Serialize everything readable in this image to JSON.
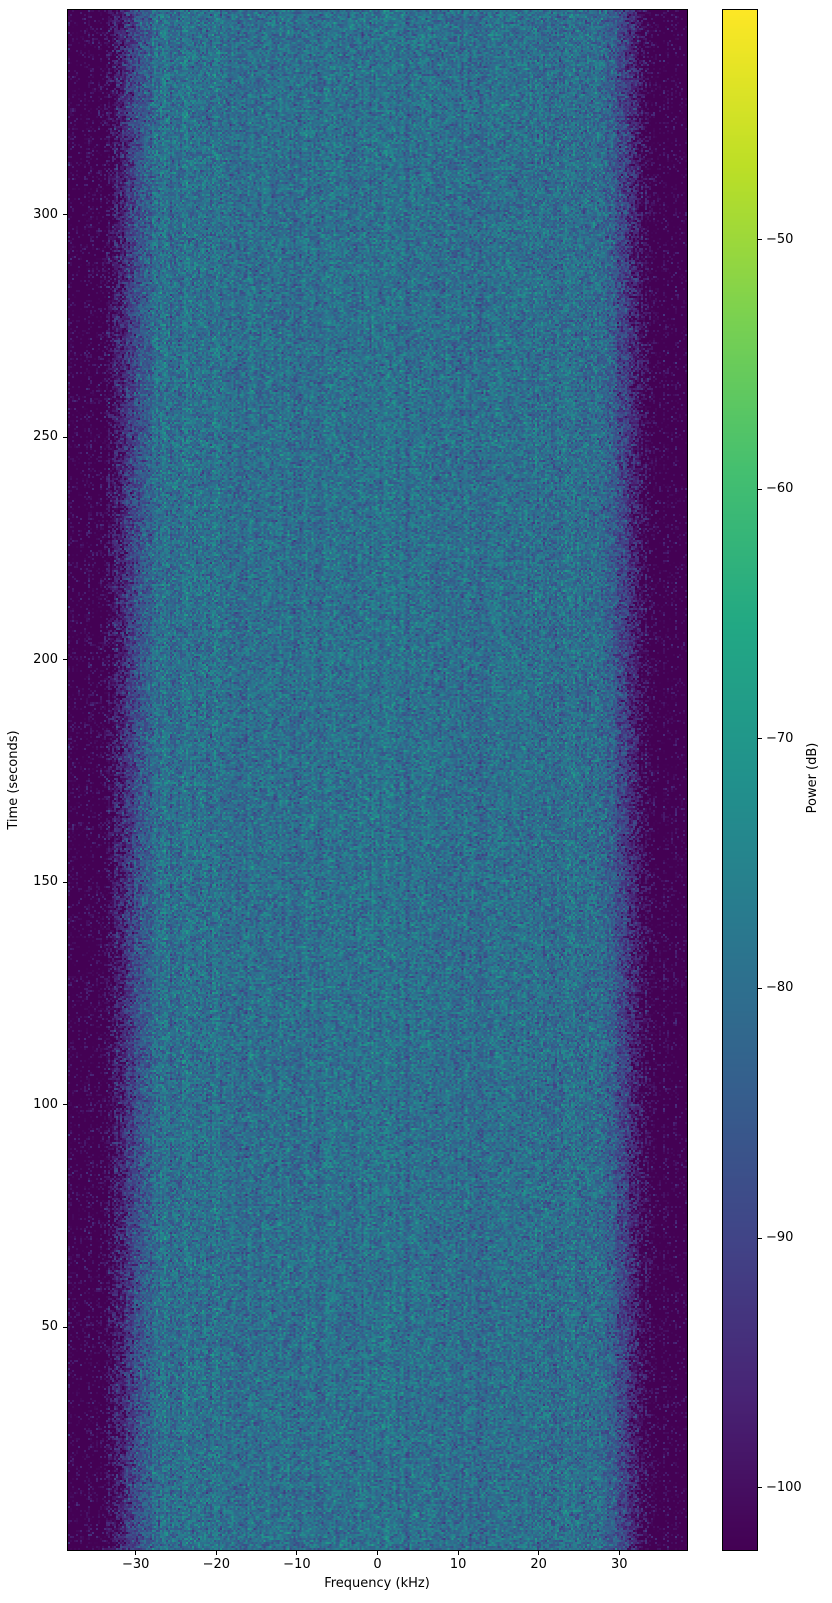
{
  "chart_data": {
    "type": "heatmap",
    "title": "",
    "xlabel": "Frequency (kHz)",
    "ylabel": "Time (seconds)",
    "x_axis": {
      "range_khz": [
        -38.4,
        38.4
      ],
      "ticks": [
        -30,
        -20,
        -10,
        0,
        10,
        20,
        30
      ]
    },
    "y_axis": {
      "range_seconds": [
        0,
        346
      ],
      "ticks": [
        50,
        100,
        150,
        200,
        250,
        300
      ]
    },
    "colorbar": {
      "label": "Power (dB)",
      "ticks": [
        -50,
        -60,
        -70,
        -80,
        -90,
        -100
      ],
      "vmax_db": -40.8,
      "vmin_db": -102.5
    },
    "colormap": {
      "name": "viridis",
      "stops": [
        "#440154",
        "#482475",
        "#414487",
        "#355f8d",
        "#2a788e",
        "#21918c",
        "#22a884",
        "#44bf70",
        "#7ad151",
        "#bddf26",
        "#fde725"
      ]
    },
    "signal": {
      "noise_floor_db": -80,
      "passband_edge_khz": 26.5,
      "stopband_edge_khz": 35.5,
      "stopband_db": -106,
      "pixel_noise_std_db": 4.5,
      "column_noise_std_db": 1.2
    },
    "grid": false,
    "legend": false,
    "background": "#ffffff"
  }
}
